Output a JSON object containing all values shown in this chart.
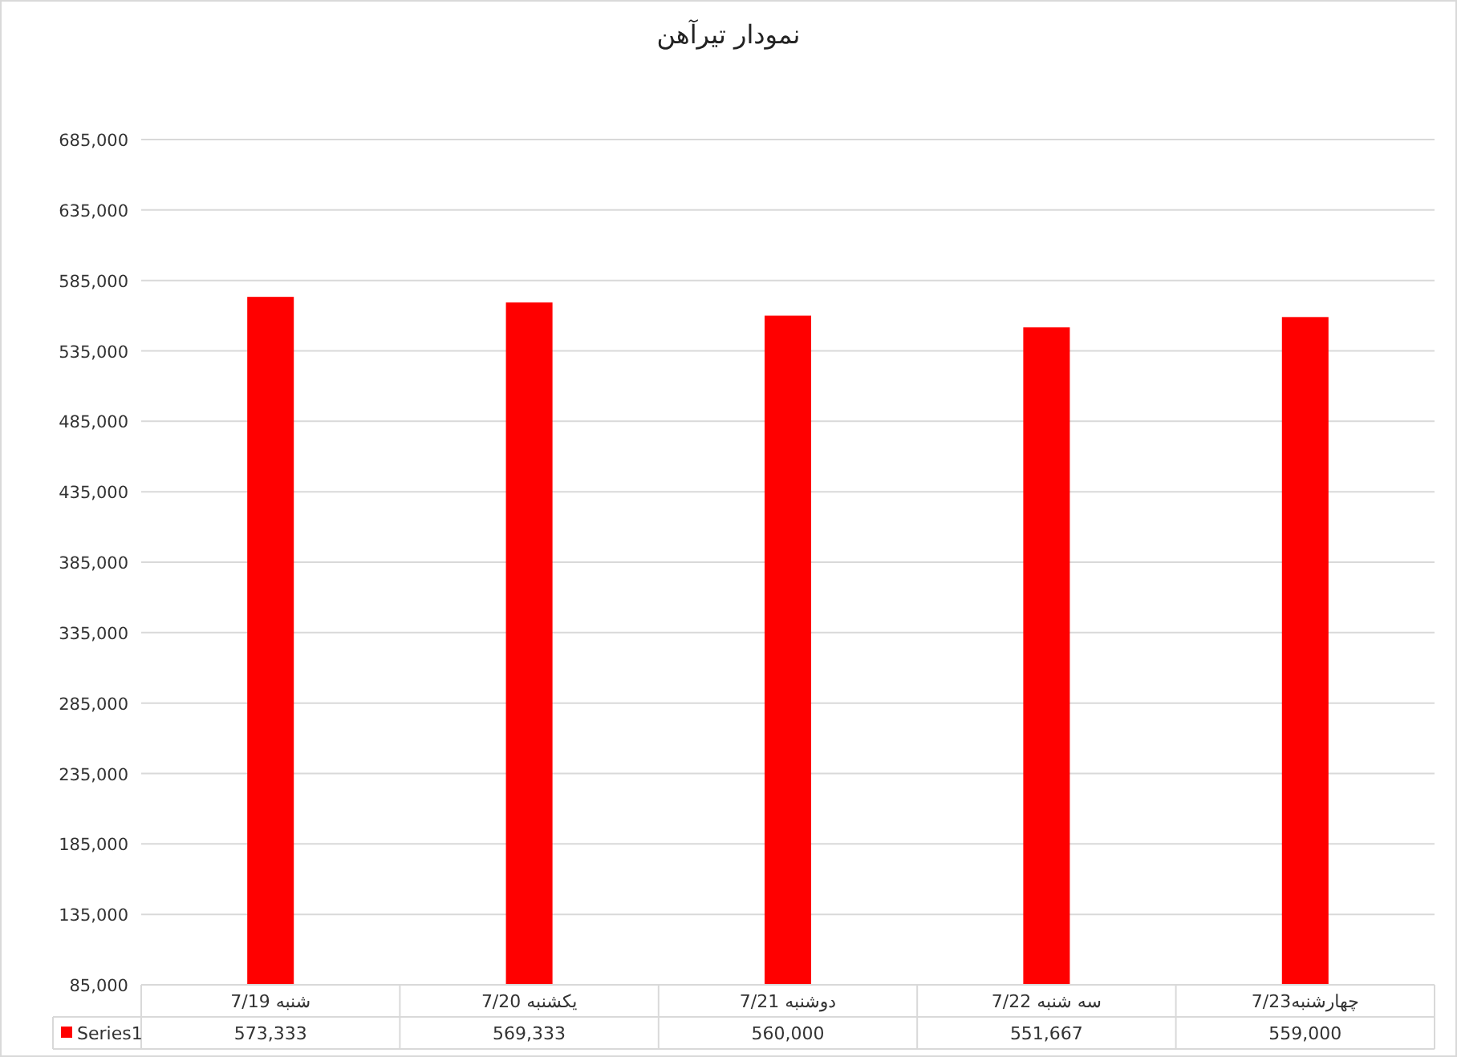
{
  "chart_data": {
    "type": "bar",
    "title": "نمودار تیرآهن",
    "categories": [
      "7/19 شنبه",
      "7/20 یکشنبه",
      "7/21 دوشنبه",
      "7/22 سه شنبه",
      "چهارشنبه7/23"
    ],
    "series": [
      {
        "name": "Series1",
        "color": "#ff0000",
        "values": [
          573333,
          569333,
          560000,
          551667,
          559000
        ],
        "value_labels": [
          "573,333",
          "569,333",
          "560,000",
          "551,667",
          "559,000"
        ]
      }
    ],
    "ylim": [
      85000,
      685000
    ],
    "yticks": [
      {
        "value": 85000,
        "label": "85,000"
      },
      {
        "value": 135000,
        "label": "135,000"
      },
      {
        "value": 185000,
        "label": "185,000"
      },
      {
        "value": 235000,
        "label": "235,000"
      },
      {
        "value": 285000,
        "label": "285,000"
      },
      {
        "value": 335000,
        "label": "335,000"
      },
      {
        "value": 385000,
        "label": "385,000"
      },
      {
        "value": 435000,
        "label": "435,000"
      },
      {
        "value": 485000,
        "label": "485,000"
      },
      {
        "value": 535000,
        "label": "535,000"
      },
      {
        "value": 585000,
        "label": "585,000"
      },
      {
        "value": 635000,
        "label": "635,000"
      },
      {
        "value": 685000,
        "label": "685,000"
      }
    ],
    "grid": "y",
    "legend": "bottom"
  }
}
